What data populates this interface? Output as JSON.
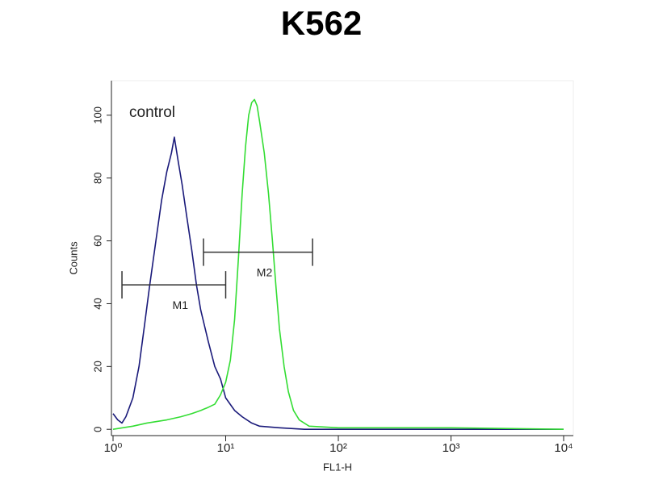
{
  "chart_data": {
    "type": "line",
    "title": "K562",
    "xlabel": "FL1-H",
    "ylabel": "Counts",
    "xscale": "log",
    "xlim": [
      1,
      10000
    ],
    "ylim": [
      -2,
      111
    ],
    "xticks": [
      {
        "value": 1,
        "label": "10⁰"
      },
      {
        "value": 10,
        "label": "10¹"
      },
      {
        "value": 100,
        "label": "10²"
      },
      {
        "value": 1000,
        "label": "10³"
      },
      {
        "value": 10000,
        "label": "10⁴"
      }
    ],
    "yticks": [
      0,
      20,
      40,
      60,
      80,
      100
    ],
    "series": [
      {
        "name": "control",
        "color": "#1a1a7a",
        "x": [
          1.0,
          1.1,
          1.2,
          1.3,
          1.5,
          1.7,
          1.9,
          2.1,
          2.4,
          2.7,
          3.0,
          3.3,
          3.5,
          3.8,
          4.1,
          4.5,
          5.0,
          5.5,
          6.0,
          7.0,
          8.0,
          9.0,
          10,
          12,
          14,
          17,
          20,
          30,
          50,
          100,
          1000,
          10000
        ],
        "values": [
          5,
          3,
          2,
          4,
          10,
          20,
          33,
          45,
          60,
          73,
          82,
          88,
          93,
          85,
          78,
          68,
          57,
          46,
          38,
          28,
          20,
          16,
          10,
          6,
          4,
          2,
          1,
          0.5,
          0,
          0,
          0,
          0
        ]
      },
      {
        "color": "#33dd33",
        "x": [
          1.0,
          1.5,
          2,
          3,
          4,
          5,
          6,
          7,
          8,
          9,
          10,
          11,
          12,
          13,
          14,
          15,
          16,
          17,
          18,
          19,
          20,
          22,
          24,
          26,
          28,
          30,
          33,
          36,
          40,
          45,
          55,
          100,
          1000,
          10000
        ],
        "values": [
          0,
          1,
          2,
          3,
          4,
          5,
          6,
          7,
          8,
          11,
          15,
          22,
          35,
          55,
          75,
          90,
          100,
          104,
          105,
          103,
          98,
          88,
          75,
          60,
          45,
          32,
          20,
          12,
          6,
          3,
          1,
          0.5,
          0.5,
          0
        ]
      }
    ],
    "markers": [
      {
        "label": "M1",
        "x": [
          1.2,
          10
        ],
        "y": 46
      },
      {
        "label": "M2",
        "x": [
          6.35,
          59
        ],
        "y": 56.4
      }
    ]
  }
}
